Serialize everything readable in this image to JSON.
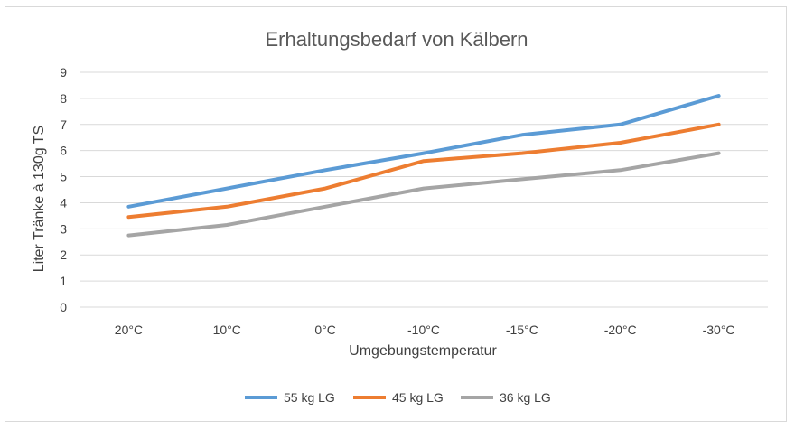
{
  "chart_data": {
    "type": "line",
    "title": "Erhaltungsbedarf von Kälbern",
    "xlabel": "Umgebungstemperatur",
    "ylabel": "Liter Tränke à 130g TS",
    "categories": [
      "20°C",
      "10°C",
      "0°C",
      "-10°C",
      "-15°C",
      "-20°C",
      "-30°C"
    ],
    "ylim": [
      0,
      9
    ],
    "yticks": [
      0,
      1,
      2,
      3,
      4,
      5,
      6,
      7,
      8,
      9
    ],
    "grid": true,
    "legend_position": "bottom",
    "series": [
      {
        "name": "55 kg LG",
        "color": "#5b9bd5",
        "values": [
          3.85,
          4.55,
          5.25,
          5.9,
          6.6,
          7.0,
          8.1
        ]
      },
      {
        "name": "45 kg LG",
        "color": "#ed7d31",
        "values": [
          3.45,
          3.85,
          4.55,
          5.6,
          5.9,
          6.3,
          7.0
        ]
      },
      {
        "name": "36 kg LG",
        "color": "#a5a5a5",
        "values": [
          2.75,
          3.15,
          3.85,
          4.55,
          4.9,
          5.25,
          5.9
        ]
      }
    ]
  }
}
